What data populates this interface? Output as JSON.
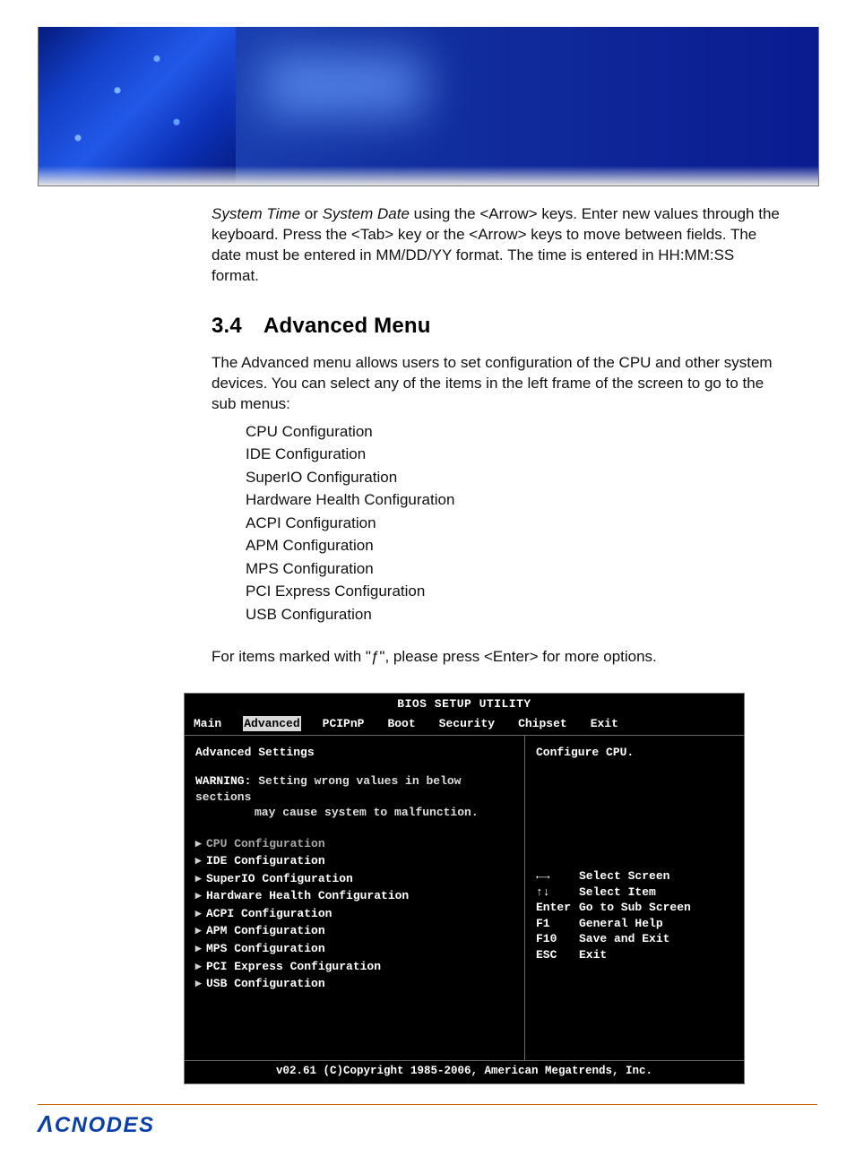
{
  "intro_paragraph": {
    "prefix_italic_1": "System Time",
    "mid_1": " or ",
    "prefix_italic_2": "System Date",
    "rest": " using the <Arrow> keys. Enter new values through the keyboard. Press the <Tab> key or the <Arrow> keys to move between fields. The date must be entered in MM/DD/YY format. The time is entered in HH:MM:SS format."
  },
  "heading": {
    "number": "3.4",
    "text": "Advanced Menu"
  },
  "advanced_intro": "The Advanced menu allows users to set configuration of the CPU and other system devices. You can select any of the items in the left frame of the screen to go to the sub menus:",
  "sublist": [
    "CPU Configuration",
    "IDE Configuration",
    "SuperIO Configuration",
    "Hardware Health Configuration",
    "ACPI  Configuration",
    "APM   Configuration",
    "MPS Configuration",
    "PCI Express Configuration",
    "USB Configuration"
  ],
  "enter_note": "For items marked with \"ƒ\", please press <Enter> for more options.",
  "bios": {
    "title": "BIOS SETUP UTILITY",
    "tabs": [
      "Main",
      "Advanced",
      "PCIPnP",
      "Boot",
      "Security",
      "Chipset",
      "Exit"
    ],
    "selected_tab_index": 1,
    "section_title": "Advanced Settings",
    "warning_label": "WARNING:",
    "warning_line1": "Setting wrong values in below sections",
    "warning_line2": "may cause system to malfunction.",
    "items": [
      "CPU Configuration",
      "IDE Configuration",
      "SuperIO Configuration",
      "Hardware Health Configuration",
      "ACPI Configuration",
      "APM Configuration",
      "MPS Configuration",
      "PCI Express Configuration",
      "USB Configuration"
    ],
    "selected_item_index": 0,
    "help_top": "Configure CPU.",
    "help_keys": [
      {
        "key": "←→",
        "label": "Select Screen",
        "key_display": "←"
      },
      {
        "key": "↑↓",
        "label": "Select Item"
      },
      {
        "key": "Enter",
        "label": "Go to Sub Screen"
      },
      {
        "key": "F1",
        "label": "General Help"
      },
      {
        "key": "F10",
        "label": "Save and Exit"
      },
      {
        "key": "ESC",
        "label": "Exit"
      }
    ],
    "footer": "v02.61 (C)Copyright 1985-2006, American Megatrends, Inc."
  },
  "logo_text": "ACNODES",
  "colors": {
    "banner_blue": "#1230a0",
    "rule_orange": "#cc6600",
    "logo_blue": "#0a3fa8",
    "bios_bg": "#000000",
    "bios_fg": "#ffffff",
    "bios_sel_bg": "#d8d8d8",
    "bios_sel_fg": "#000000",
    "bios_dim": "#a8a8a8"
  }
}
